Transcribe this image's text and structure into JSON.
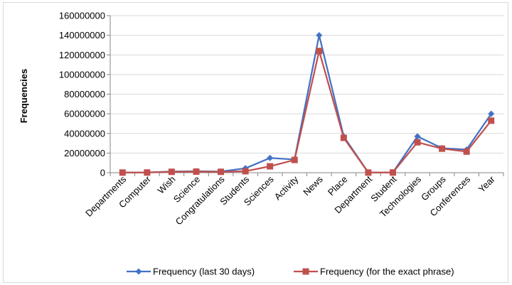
{
  "chart_data": {
    "type": "line",
    "title": "",
    "xlabel": "",
    "ylabel": "Frequencies",
    "ylim": [
      0,
      160000000
    ],
    "yticks": [
      0,
      20000000,
      40000000,
      60000000,
      80000000,
      100000000,
      120000000,
      140000000,
      160000000
    ],
    "ytick_labels": [
      "0",
      "20000000",
      "40000000",
      "60000000",
      "80000000",
      "100000000",
      "120000000",
      "140000000",
      "160000000"
    ],
    "grid": "horizontal",
    "legend_position": "bottom",
    "categories": [
      "Departments",
      "Computer",
      "Wish",
      "Science",
      "Congratulations",
      "Students",
      "Sciences",
      "Activity",
      "News",
      "Place",
      "Department",
      "Student",
      "Technologies",
      "Groups",
      "Conferences",
      "Year"
    ],
    "series": [
      {
        "name": "Frequency (last 30 days)",
        "color": "#4472c4",
        "marker": "diamond",
        "values": [
          200000,
          300000,
          1200000,
          1500000,
          1200000,
          4500000,
          15000000,
          13500000,
          140000000,
          37000000,
          200000,
          300000,
          37000000,
          25000000,
          23500000,
          60000000
        ]
      },
      {
        "name": "Frequency (for the exact phrase)",
        "color": "#c0504d",
        "marker": "square",
        "values": [
          150000,
          200000,
          900000,
          1100000,
          900000,
          1500000,
          6500000,
          13000000,
          124000000,
          35500000,
          150000,
          200000,
          31000000,
          24500000,
          21500000,
          53000000
        ]
      }
    ]
  }
}
